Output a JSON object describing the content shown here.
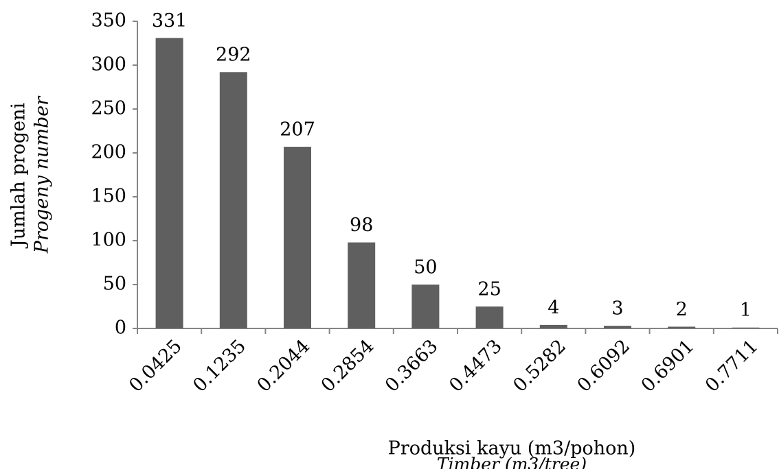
{
  "chart_data": {
    "type": "bar",
    "ylabel": "Jumlah progeni",
    "ylabel_en": "Progeny number",
    "xlabel": "Produksi kayu (m3/pohon)",
    "xlabel_en": "Timber (m3/tree)",
    "categories": [
      "0.0425",
      "0.1235",
      "0.2044",
      "0.2854",
      "0.3663",
      "0.4473",
      "0.5282",
      "0.6092",
      "0.6901",
      "0.7711"
    ],
    "values": [
      331,
      292,
      207,
      98,
      50,
      25,
      4,
      3,
      2,
      1
    ],
    "color": "#5f5f5f",
    "ylim": [
      0,
      350
    ],
    "yticks": [
      0,
      50,
      100,
      150,
      200,
      250,
      300,
      350
    ],
    "grid": false
  }
}
